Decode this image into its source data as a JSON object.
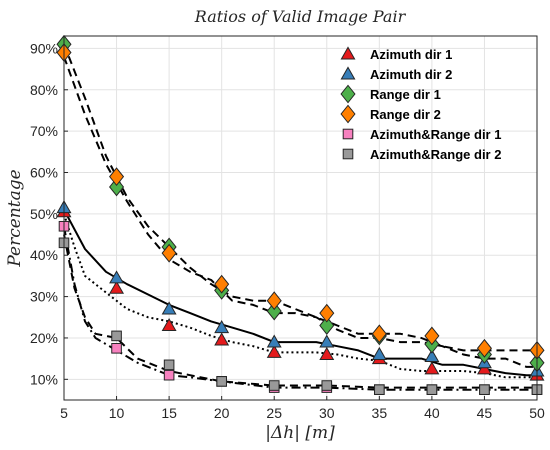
{
  "chart_data": {
    "type": "line",
    "title": "Ratios of Valid Image Pair",
    "xlabel": "|Δh| [m]",
    "ylabel": "Percentage",
    "xlim": [
      5,
      50
    ],
    "ylim": [
      5,
      93
    ],
    "x": [
      5,
      10,
      15,
      20,
      25,
      30,
      35,
      40,
      45,
      50
    ],
    "xticks": [
      "5",
      "10",
      "15",
      "20",
      "25",
      "30",
      "35",
      "40",
      "45",
      "50"
    ],
    "yticks": [
      10,
      20,
      30,
      40,
      50,
      60,
      70,
      80,
      90
    ],
    "ytick_labels": [
      "10%",
      "20%",
      "30%",
      "40%",
      "50%",
      "60%",
      "70%",
      "80%",
      "90%"
    ],
    "grid": true,
    "legend_position": "top-right",
    "series": [
      {
        "name": "Azimuth dir 1",
        "marker": "triangle",
        "color": "#e41a1c",
        "values": [
          50.5,
          32,
          23,
          19.5,
          16.5,
          16,
          15,
          12.5,
          12.5,
          11
        ]
      },
      {
        "name": "Azimuth dir 2",
        "marker": "triangle",
        "color": "#377eb8",
        "values": [
          51.5,
          34.5,
          27,
          22.5,
          19,
          19,
          16,
          15.5,
          14,
          12
        ]
      },
      {
        "name": "Range dir 1",
        "marker": "diamond",
        "color": "#4daf4a",
        "values": [
          91,
          56.5,
          42,
          31.5,
          26.5,
          23,
          20.5,
          18.5,
          16,
          14
        ]
      },
      {
        "name": "Range dir 2",
        "marker": "diamond",
        "color": "#ff7f00",
        "values": [
          89,
          59,
          40.5,
          33,
          29,
          26,
          21,
          20.5,
          17.5,
          17
        ]
      },
      {
        "name": "Azimuth&Range dir 1",
        "marker": "square",
        "color": "#f781bf",
        "values": [
          47,
          17.5,
          11,
          9.5,
          8,
          8,
          7.5,
          7.5,
          7.5,
          7.5
        ]
      },
      {
        "name": "Azimuth&Range dir 2",
        "marker": "square",
        "color": "#999999",
        "values": [
          43,
          20.5,
          13.5,
          9.5,
          8.5,
          8.5,
          7.5,
          7.5,
          7.5,
          7.5
        ]
      }
    ],
    "fit_lines": [
      {
        "style": "solid",
        "x": [
          5,
          7,
          9,
          11,
          13,
          15,
          17,
          19,
          21,
          23,
          25,
          27,
          29,
          31,
          33,
          35,
          37,
          39,
          41,
          43,
          45,
          47,
          49,
          50
        ],
        "values": [
          51,
          41.5,
          36,
          33,
          30.5,
          28,
          26,
          24,
          22.5,
          21,
          19,
          19,
          19,
          18,
          17,
          15,
          15,
          15,
          13.5,
          13.5,
          12.5,
          11.5,
          11,
          11
        ]
      },
      {
        "style": "dotted",
        "x": [
          5,
          6,
          7,
          9,
          11,
          13,
          15,
          17,
          19,
          21,
          23,
          25,
          27,
          29,
          31,
          33,
          35,
          37,
          39,
          41,
          43,
          45,
          47,
          49,
          50
        ],
        "values": [
          50,
          42,
          35,
          31,
          27,
          25,
          24,
          22.5,
          20.5,
          19,
          18,
          16.5,
          16.5,
          16.5,
          16,
          15,
          14.5,
          12.5,
          12,
          12,
          12,
          11.5,
          10.5,
          10.5,
          10.5
        ]
      },
      {
        "style": "dashed",
        "x": [
          5,
          7,
          9,
          11,
          13,
          15,
          17,
          19,
          21,
          23,
          25,
          27,
          29,
          31,
          33,
          35,
          37,
          39,
          41,
          43,
          45,
          47,
          49,
          50
        ],
        "values": [
          91,
          78,
          64,
          54,
          47,
          42,
          37,
          33,
          30,
          29,
          29,
          27,
          25,
          23,
          21,
          21,
          21,
          20,
          18,
          17,
          17,
          17,
          17,
          17
        ]
      },
      {
        "style": "dashed",
        "x": [
          5,
          7,
          9,
          11,
          13,
          15,
          17,
          19,
          21,
          23,
          25,
          27,
          29,
          31,
          33,
          35,
          37,
          39,
          41,
          43,
          45,
          47,
          49,
          50
        ],
        "values": [
          88,
          74,
          62,
          53,
          45,
          39,
          36,
          34,
          29,
          28,
          26,
          26,
          25,
          22,
          20,
          20,
          19,
          19,
          18,
          16,
          15,
          15,
          13,
          13
        ]
      },
      {
        "style": "dashed",
        "x": [
          5,
          6,
          7,
          8,
          10,
          12,
          14,
          15,
          17,
          20,
          25,
          30,
          35,
          40,
          45,
          50
        ],
        "values": [
          45,
          32,
          25,
          21,
          20,
          15,
          13,
          12,
          11,
          9.5,
          8.5,
          8.5,
          8,
          8,
          8,
          8
        ]
      },
      {
        "style": "dashdot",
        "x": [
          5,
          6,
          7,
          8,
          10,
          12,
          14,
          15,
          17,
          20,
          25,
          30,
          35,
          40,
          45,
          50
        ],
        "values": [
          47,
          33,
          24,
          20,
          17,
          14,
          12,
          11,
          10.5,
          9.5,
          8,
          8,
          7.5,
          7.5,
          7.5,
          7.5
        ]
      }
    ]
  }
}
